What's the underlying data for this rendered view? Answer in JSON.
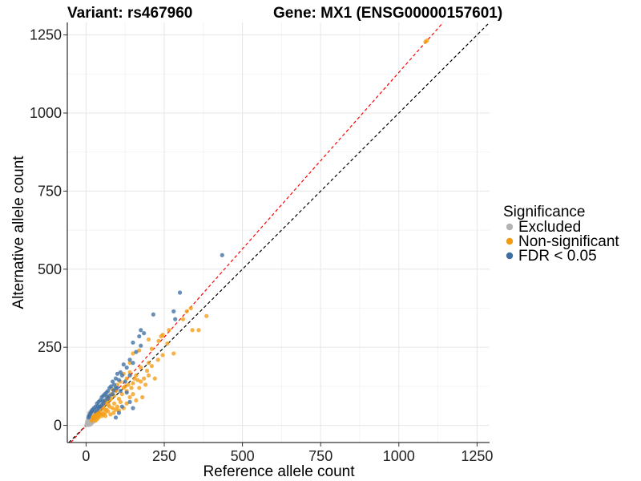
{
  "chart_data": {
    "type": "scatter",
    "title_variant": "Variant: rs467960",
    "title_gene": "Gene: MX1 (ENSG00000157601)",
    "xlabel": "Reference allele count",
    "ylabel": "Alternative allele count",
    "xlim": [
      -60,
      1290
    ],
    "ylim": [
      -55,
      1290
    ],
    "xticks": [
      0,
      250,
      500,
      750,
      1000,
      1250
    ],
    "yticks": [
      0,
      250,
      500,
      750,
      1000,
      1250
    ],
    "reference_lines": [
      {
        "name": "identity",
        "slope": 1.0,
        "color": "#000000"
      },
      {
        "name": "fit",
        "slope": 1.13,
        "color": "#ff0000"
      }
    ],
    "legend": {
      "title": "Significance",
      "entries": [
        {
          "label": "Excluded",
          "color": "#b3b3b3"
        },
        {
          "label": "Non-significant",
          "color": "#f39c12"
        },
        {
          "label": "FDR < 0.05",
          "color": "#3e6fa3"
        }
      ]
    },
    "series": [
      {
        "name": "Excluded",
        "color": "#b3b3b3",
        "points": [
          [
            2,
            5
          ],
          [
            5,
            3
          ],
          [
            8,
            10
          ],
          [
            10,
            6
          ],
          [
            12,
            15
          ],
          [
            15,
            9
          ],
          [
            3,
            12
          ],
          [
            6,
            20
          ],
          [
            18,
            22
          ],
          [
            20,
            14
          ],
          [
            4,
            8
          ],
          [
            9,
            2
          ],
          [
            14,
            25
          ],
          [
            22,
            30
          ],
          [
            11,
            18
          ],
          [
            7,
            14
          ],
          [
            16,
            4
          ],
          [
            25,
            20
          ],
          [
            1,
            1
          ],
          [
            13,
            28
          ],
          [
            19,
            8
          ],
          [
            6,
            1
          ],
          [
            27,
            33
          ],
          [
            10,
            40
          ],
          [
            15,
            45
          ],
          [
            24,
            12
          ],
          [
            17,
            35
          ],
          [
            30,
            25
          ],
          [
            8,
            30
          ],
          [
            12,
            2
          ]
        ]
      },
      {
        "name": "Non-significant",
        "color": "#f39c12",
        "points": [
          [
            1085,
            1228
          ],
          [
            1090,
            1232
          ],
          [
            385,
            350
          ],
          [
            335,
            375
          ],
          [
            322,
            365
          ],
          [
            310,
            340
          ],
          [
            360,
            305
          ],
          [
            340,
            305
          ],
          [
            265,
            305
          ],
          [
            245,
            290
          ],
          [
            240,
            285
          ],
          [
            260,
            262
          ],
          [
            232,
            270
          ],
          [
            200,
            275
          ],
          [
            210,
            245
          ],
          [
            280,
            230
          ],
          [
            245,
            225
          ],
          [
            170,
            240
          ],
          [
            150,
            230
          ],
          [
            140,
            200
          ],
          [
            200,
            200
          ],
          [
            230,
            210
          ],
          [
            175,
            185
          ],
          [
            200,
            160
          ],
          [
            220,
            150
          ],
          [
            160,
            160
          ],
          [
            140,
            170
          ],
          [
            130,
            150
          ],
          [
            120,
            165
          ],
          [
            110,
            140
          ],
          [
            100,
            130
          ],
          [
            95,
            110
          ],
          [
            85,
            115
          ],
          [
            90,
            95
          ],
          [
            80,
            100
          ],
          [
            75,
            80
          ],
          [
            70,
            90
          ],
          [
            65,
            70
          ],
          [
            60,
            75
          ],
          [
            55,
            60
          ],
          [
            50,
            55
          ],
          [
            45,
            60
          ],
          [
            40,
            45
          ],
          [
            35,
            40
          ],
          [
            30,
            38
          ],
          [
            28,
            30
          ],
          [
            25,
            28
          ],
          [
            22,
            20
          ],
          [
            20,
            25
          ],
          [
            18,
            15
          ],
          [
            120,
            120
          ],
          [
            130,
            110
          ],
          [
            150,
            100
          ],
          [
            170,
            120
          ],
          [
            180,
            90
          ],
          [
            160,
            80
          ],
          [
            140,
            90
          ],
          [
            110,
            75
          ],
          [
            100,
            60
          ],
          [
            95,
            50
          ],
          [
            130,
            70
          ],
          [
            115,
            100
          ],
          [
            105,
            85
          ],
          [
            90,
            70
          ],
          [
            85,
            55
          ],
          [
            75,
            60
          ],
          [
            70,
            45
          ],
          [
            65,
            50
          ],
          [
            60,
            40
          ],
          [
            55,
            35
          ],
          [
            50,
            30
          ],
          [
            45,
            35
          ],
          [
            40,
            25
          ],
          [
            35,
            20
          ],
          [
            30,
            15
          ],
          [
            150,
            135
          ],
          [
            165,
            145
          ],
          [
            185,
            150
          ],
          [
            195,
            175
          ],
          [
            210,
            190
          ],
          [
            125,
            125
          ],
          [
            135,
            130
          ],
          [
            145,
            120
          ],
          [
            155,
            150
          ],
          [
            175,
            140
          ],
          [
            190,
            130
          ],
          [
            80,
            85
          ],
          [
            72,
            65
          ],
          [
            68,
            78
          ],
          [
            58,
            52
          ],
          [
            48,
            42
          ],
          [
            42,
            38
          ],
          [
            38,
            30
          ],
          [
            33,
            28
          ],
          [
            26,
            22
          ],
          [
            120,
            55
          ],
          [
            105,
            48
          ],
          [
            88,
            40
          ],
          [
            78,
            35
          ],
          [
            62,
            30
          ]
        ]
      },
      {
        "name": "FDR < 0.05",
        "color": "#3e6fa3",
        "points": [
          [
            435,
            545
          ],
          [
            300,
            425
          ],
          [
            280,
            365
          ],
          [
            285,
            340
          ],
          [
            215,
            355
          ],
          [
            175,
            305
          ],
          [
            185,
            295
          ],
          [
            170,
            285
          ],
          [
            150,
            265
          ],
          [
            175,
            255
          ],
          [
            160,
            235
          ],
          [
            140,
            210
          ],
          [
            150,
            200
          ],
          [
            120,
            195
          ],
          [
            130,
            185
          ],
          [
            110,
            170
          ],
          [
            100,
            165
          ],
          [
            115,
            160
          ],
          [
            95,
            150
          ],
          [
            105,
            145
          ],
          [
            85,
            140
          ],
          [
            90,
            130
          ],
          [
            80,
            125
          ],
          [
            75,
            120
          ],
          [
            70,
            110
          ],
          [
            65,
            105
          ],
          [
            60,
            100
          ],
          [
            55,
            95
          ],
          [
            50,
            90
          ],
          [
            45,
            80
          ],
          [
            40,
            75
          ],
          [
            35,
            70
          ],
          [
            30,
            60
          ],
          [
            25,
            55
          ],
          [
            20,
            50
          ],
          [
            18,
            45
          ],
          [
            15,
            40
          ],
          [
            12,
            35
          ],
          [
            10,
            30
          ],
          [
            8,
            25
          ],
          [
            130,
            105
          ],
          [
            110,
            110
          ],
          [
            140,
            160
          ],
          [
            125,
            140
          ],
          [
            95,
            120
          ],
          [
            85,
            100
          ],
          [
            75,
            95
          ],
          [
            70,
            85
          ],
          [
            60,
            80
          ],
          [
            55,
            70
          ],
          [
            50,
            65
          ],
          [
            45,
            60
          ],
          [
            40,
            55
          ],
          [
            35,
            50
          ],
          [
            28,
            45
          ],
          [
            150,
            55
          ],
          [
            140,
            75
          ],
          [
            115,
            60
          ],
          [
            105,
            40
          ],
          [
            95,
            25
          ],
          [
            100,
            120
          ],
          [
            88,
            112
          ],
          [
            66,
            92
          ],
          [
            52,
            78
          ],
          [
            38,
            62
          ]
        ]
      }
    ]
  }
}
